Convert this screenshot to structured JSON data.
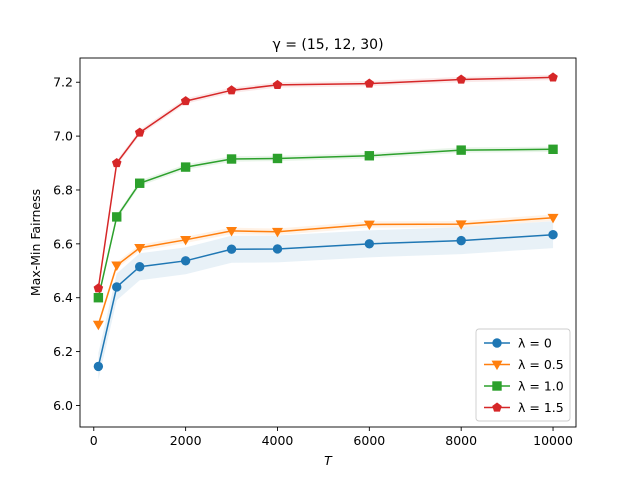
{
  "chart_data": {
    "type": "line",
    "title": "γ = (15, 12, 30)",
    "xlabel": "T",
    "ylabel": "Max-Min Fairness",
    "xlim": [
      -300,
      10500
    ],
    "ylim": [
      5.92,
      7.29
    ],
    "xticks": [
      0,
      2000,
      4000,
      6000,
      8000,
      10000
    ],
    "yticks": [
      6.0,
      6.2,
      6.4,
      6.6,
      6.8,
      7.0,
      7.2
    ],
    "xtick_labels": [
      "0",
      "2000",
      "4000",
      "6000",
      "8000",
      "10000"
    ],
    "ytick_labels": [
      "6.0",
      "6.2",
      "6.4",
      "6.6",
      "6.8",
      "7.0",
      "7.2"
    ],
    "grid": false,
    "legend_position": "lower-right",
    "x": [
      100,
      500,
      1000,
      2000,
      3000,
      4000,
      6000,
      8000,
      10000
    ],
    "series": [
      {
        "name": "λ = 0",
        "color": "#1f77b4",
        "marker": "circle",
        "values": [
          6.145,
          6.44,
          6.515,
          6.537,
          6.58,
          6.581,
          6.6,
          6.612,
          6.634
        ],
        "band": 0.05
      },
      {
        "name": "λ = 0.5",
        "color": "#ff7f0e",
        "marker": "triangle-down",
        "values": [
          6.3,
          6.52,
          6.585,
          6.615,
          6.648,
          6.645,
          6.672,
          6.673,
          6.697
        ],
        "band": 0.012
      },
      {
        "name": "λ = 1.0",
        "color": "#2ca02c",
        "marker": "square",
        "values": [
          6.4,
          6.7,
          6.825,
          6.885,
          6.915,
          6.917,
          6.927,
          6.948,
          6.951
        ],
        "band": 0.01
      },
      {
        "name": "λ = 1.5",
        "color": "#d62728",
        "marker": "pentagon",
        "values": [
          6.435,
          6.9,
          7.013,
          7.13,
          7.17,
          7.19,
          7.195,
          7.21,
          7.218
        ],
        "band": 0.01
      }
    ]
  }
}
